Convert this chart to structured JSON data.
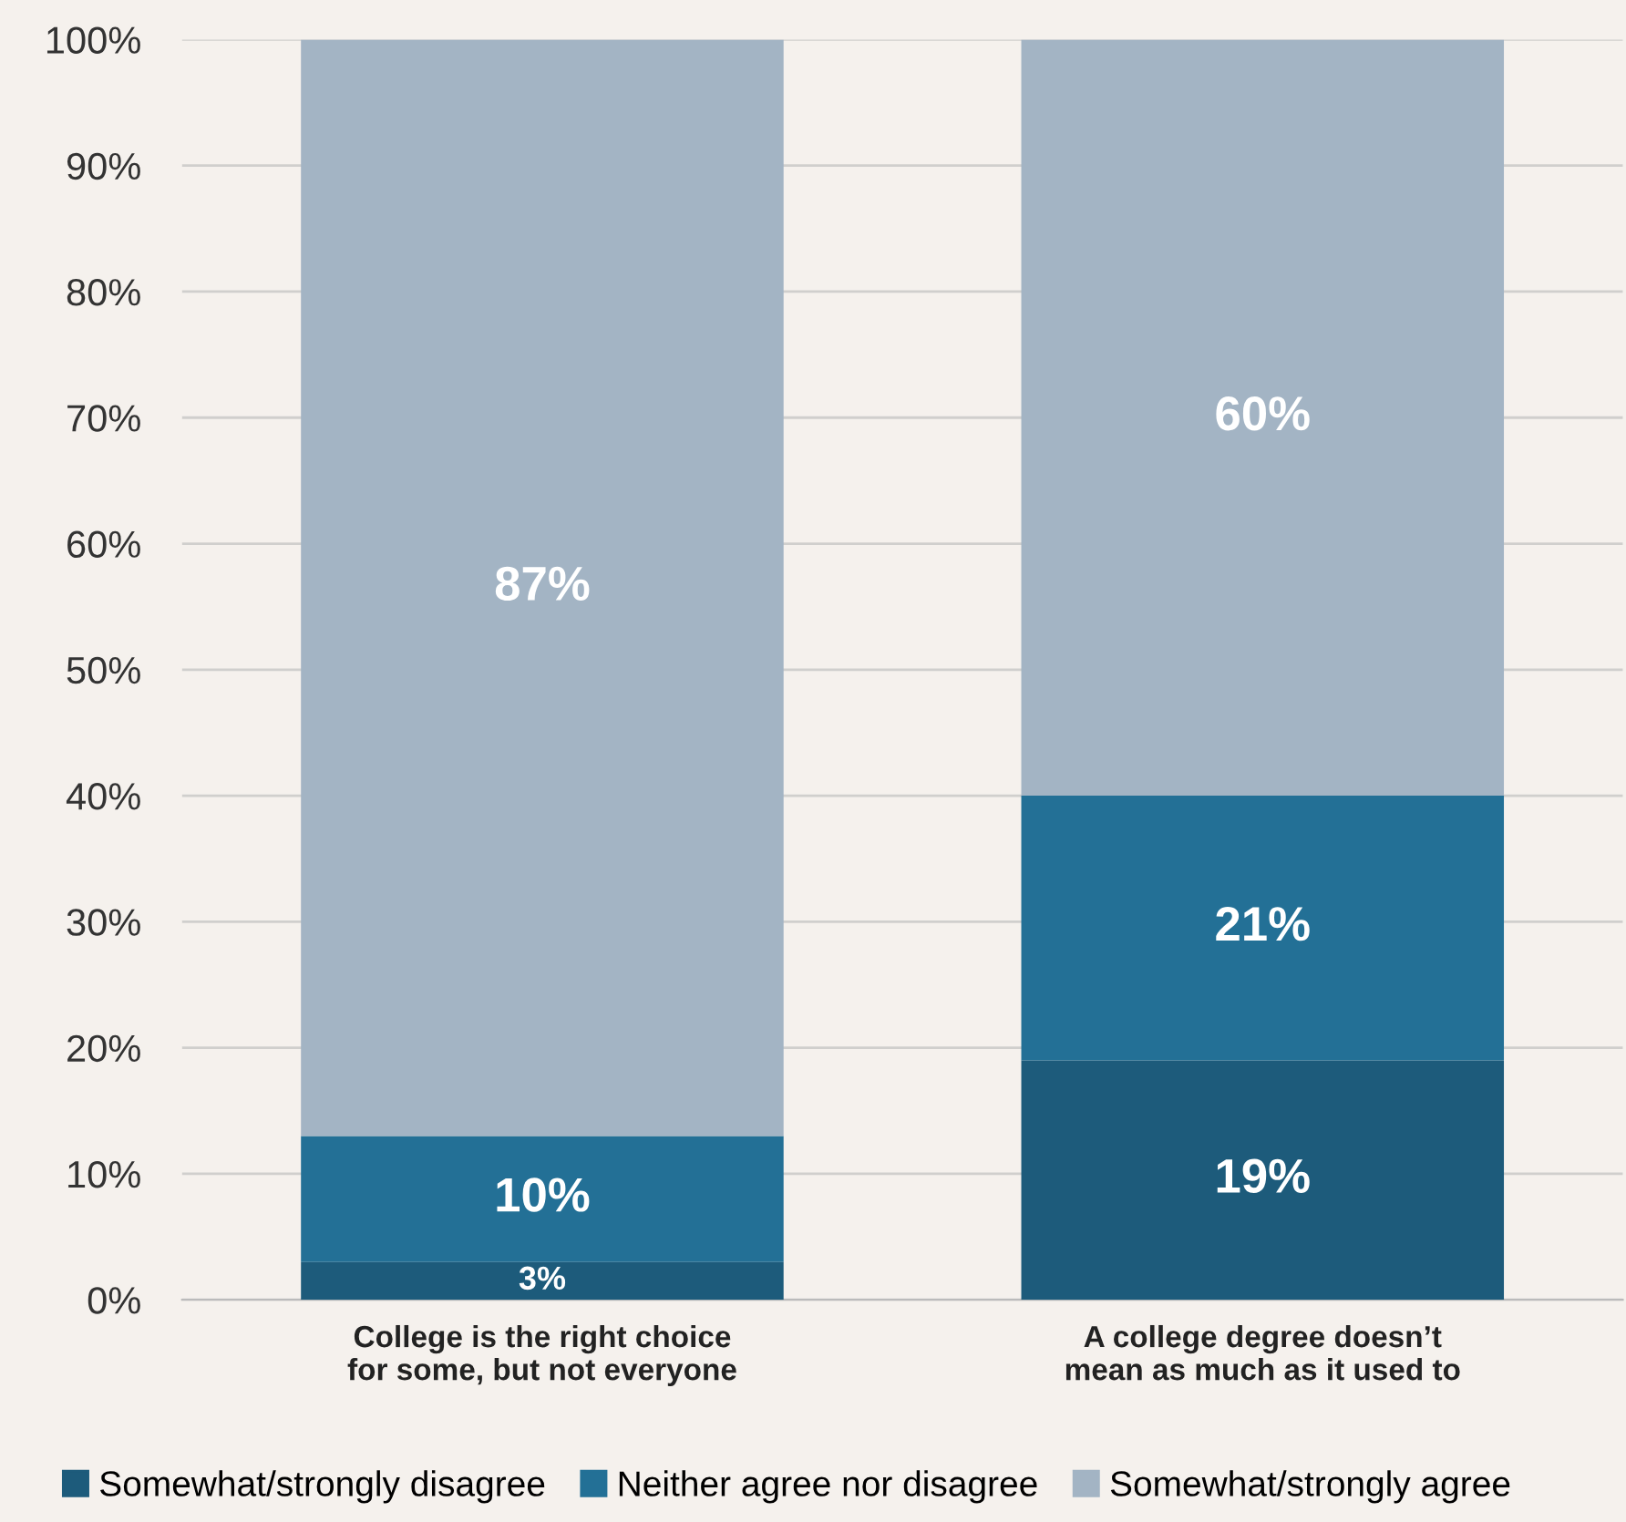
{
  "chart_data": {
    "type": "bar",
    "stacked": true,
    "categories": [
      "College is the right choice\nfor some, but not everyone",
      "A college degree doesn’t\nmean as much as it used to"
    ],
    "series": [
      {
        "name": "Somewhat/strongly disagree",
        "color": "#1d5b7b",
        "values": [
          3,
          19
        ],
        "value_labels": [
          "3%",
          "19%"
        ]
      },
      {
        "name": "Neither agree nor disagree",
        "color": "#237096",
        "values": [
          10,
          21
        ],
        "value_labels": [
          "10%",
          "21%"
        ]
      },
      {
        "name": "Somewhat/strongly agree",
        "color": "#a3b4c4",
        "values": [
          87,
          60
        ],
        "value_labels": [
          "87%",
          "60%"
        ]
      }
    ],
    "ylim": [
      0,
      100
    ],
    "yticks": [
      {
        "value": 0,
        "label": "0%"
      },
      {
        "value": 10,
        "label": "10%"
      },
      {
        "value": 20,
        "label": "20%"
      },
      {
        "value": 30,
        "label": "30%"
      },
      {
        "value": 40,
        "label": "40%"
      },
      {
        "value": 50,
        "label": "50%"
      },
      {
        "value": 60,
        "label": "60%"
      },
      {
        "value": 70,
        "label": "70%"
      },
      {
        "value": 80,
        "label": "80%"
      },
      {
        "value": 90,
        "label": "90%"
      },
      {
        "value": 100,
        "label": "100%"
      }
    ],
    "grid": "y",
    "legend": "bottom"
  }
}
